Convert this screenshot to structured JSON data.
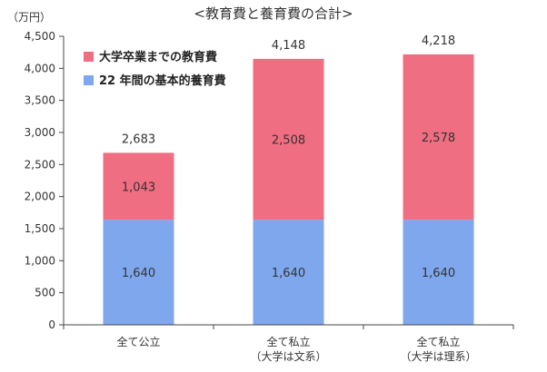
{
  "chart_data": {
    "type": "bar",
    "stacked": true,
    "title": "<教育費と養育費の合計>",
    "ylabel": "（万円）",
    "xlabel": "",
    "ylim": [
      0,
      4500
    ],
    "yticks": [
      0,
      500,
      1000,
      1500,
      2000,
      2500,
      3000,
      3500,
      4000,
      4500
    ],
    "ytick_labels": [
      "0",
      "500",
      "1,000",
      "1,500",
      "2,000",
      "2,500",
      "3,000",
      "3,500",
      "4,000",
      "4,500"
    ],
    "grid": false,
    "legend_position": "top-left",
    "categories": [
      {
        "line1": "全て公立",
        "line2": ""
      },
      {
        "line1": "全て私立",
        "line2": "（大学は文系）"
      },
      {
        "line1": "全て私立",
        "line2": "（大学は理系）"
      }
    ],
    "series": [
      {
        "name": "22 年間の基本的養育費",
        "color": "#7fa7ee",
        "values": [
          1640,
          1640,
          1640
        ],
        "value_labels": [
          "1,640",
          "1,640",
          "1,640"
        ]
      },
      {
        "name": "大学卒業までの教育費",
        "color": "#f06e82",
        "values": [
          1043,
          2508,
          2578
        ],
        "value_labels": [
          "1,043",
          "2,508",
          "2,578"
        ]
      }
    ],
    "totals": [
      2683,
      4148,
      4218
    ],
    "total_labels": [
      "2,683",
      "4,148",
      "4,218"
    ]
  }
}
